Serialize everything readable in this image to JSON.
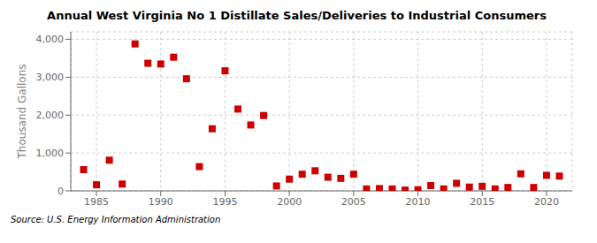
{
  "chart_data": {
    "type": "scatter",
    "title": "Annual West Virginia No 1 Distillate Sales/Deliveries to Industrial Consumers",
    "y_label": "Thousand Gallons",
    "source": "Source: U.S. Energy Information Administration",
    "color": "#cc0000",
    "marker": "square",
    "grid": true,
    "xlim": [
      1983,
      2022
    ],
    "xticks": [
      1985,
      1990,
      1995,
      2000,
      2005,
      2010,
      2015,
      2020
    ],
    "ylim": [
      0,
      4200
    ],
    "yticks": [
      0,
      {
        "value": 1000,
        "label": "1,000"
      },
      {
        "value": 2000,
        "label": "2,000"
      },
      {
        "value": 3000,
        "label": "3,000"
      },
      {
        "value": 4000,
        "label": "4,000"
      }
    ],
    "x": [
      1984,
      1985,
      1986,
      1987,
      1988,
      1989,
      1990,
      1991,
      1992,
      1993,
      1994,
      1995,
      1996,
      1997,
      1998,
      1999,
      2000,
      2001,
      2002,
      2003,
      2004,
      2005,
      2006,
      2007,
      2008,
      2009,
      2010,
      2011,
      2012,
      2013,
      2014,
      2015,
      2016,
      2017,
      2018,
      2019,
      2020,
      2021
    ],
    "values": [
      560,
      160,
      810,
      180,
      3880,
      3370,
      3350,
      3530,
      2960,
      640,
      1640,
      3170,
      2160,
      1740,
      1990,
      130,
      310,
      440,
      530,
      360,
      330,
      440,
      50,
      60,
      50,
      20,
      30,
      140,
      50,
      200,
      100,
      120,
      50,
      90,
      450,
      90,
      410,
      390
    ]
  }
}
